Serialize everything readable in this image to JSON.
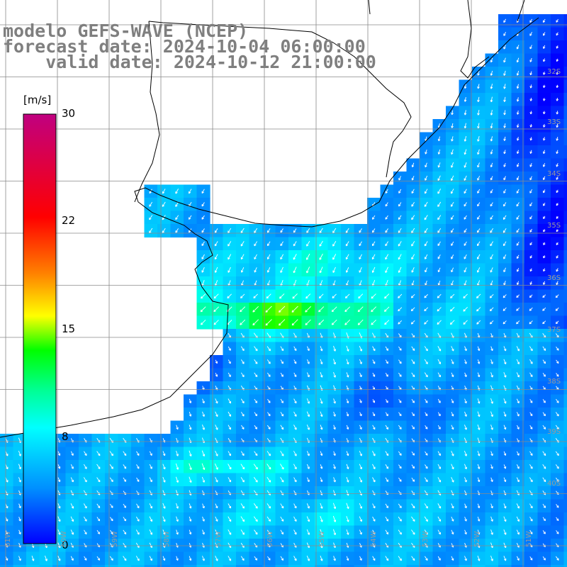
{
  "title": {
    "model": "modelo GEFS-WAVE (NCEP)",
    "forecast_date": "forecast date: 2024-10-04 06:00:00",
    "valid_date": "    valid date: 2024-10-12 21:00:00"
  },
  "colorbar": {
    "unit": "[m/s]",
    "ticks": [
      "30",
      "22",
      "15",
      "8",
      "0"
    ],
    "tick_values": [
      30,
      22,
      15,
      8,
      0
    ],
    "colors": [
      "#0000ff",
      "#00bfff",
      "#00ffff",
      "#00ff00",
      "#ffff00",
      "#ff8000",
      "#ff0000",
      "#c00080"
    ]
  },
  "axes": {
    "lat_labels": [
      "32S",
      "33S",
      "34S",
      "35S",
      "36S",
      "37S",
      "38S",
      "39S",
      "40S"
    ],
    "lon_labels": [
      "61W",
      "60W",
      "59W",
      "58W",
      "57W",
      "56W",
      "55W",
      "54W",
      "53W",
      "52W",
      "51W"
    ]
  },
  "field": {
    "variable": "wind speed",
    "description_colors": {
      "low": "#0000ff",
      "mid": "#00ffff",
      "high": "#00ff00",
      "peak": "#ffff00"
    }
  }
}
